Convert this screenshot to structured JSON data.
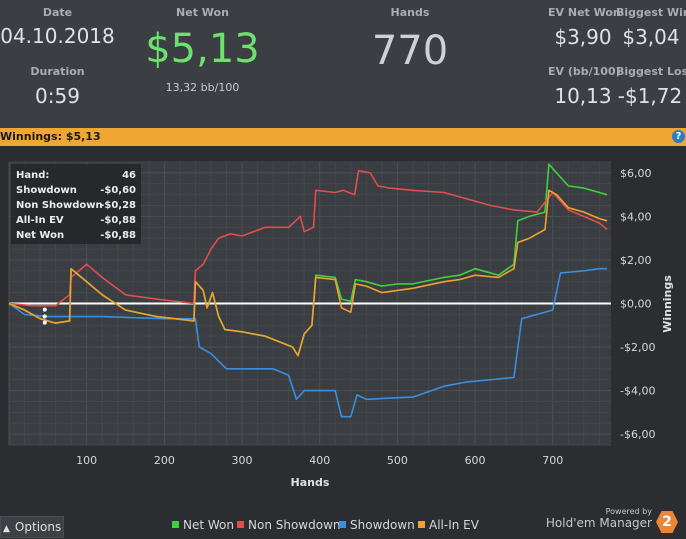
{
  "stats": {
    "date_label": "Date",
    "date_value": "04.10.2018",
    "duration_label": "Duration",
    "duration_value": "0:59",
    "net_won_label": "Net Won",
    "net_won_value": "$5,13",
    "net_won_sub": "13,32 bb/100",
    "hands_label": "Hands",
    "hands_value": "770",
    "ev_net_won_label": "EV Net Won",
    "ev_net_won_value": "$3,90",
    "biggest_win_label": "Biggest Win",
    "biggest_win_value": "$3,04",
    "ev_bb_label": "EV (bb/100)",
    "ev_bb_value": "10,13",
    "biggest_loss_label": "Biggest Loss",
    "biggest_loss_value": "-$1,72"
  },
  "bar": {
    "text": "Winnings: $5,13",
    "help": "?"
  },
  "tooltip": {
    "rows": [
      {
        "label": "Hand:",
        "value": "46"
      },
      {
        "label": "Showdown",
        "value": "-$0,60"
      },
      {
        "label": "Non Showdown",
        "value": "-$0,28"
      },
      {
        "label": "All-In EV",
        "value": "-$0,88"
      },
      {
        "label": "Net Won",
        "value": "-$0,88"
      }
    ]
  },
  "chart_data": {
    "type": "line",
    "xlabel": "Hands",
    "ylabel": "Winnings",
    "xlim": [
      0,
      775
    ],
    "ylim": [
      -6.5,
      6.5
    ],
    "x_ticks": [
      "100",
      "200",
      "300",
      "400",
      "500",
      "600",
      "700"
    ],
    "y_ticks": [
      "$6,00",
      "$4,00",
      "$2,00",
      "$0,00",
      "-$2,00",
      "-$4,00",
      "-$6,00"
    ],
    "series": [
      {
        "name": "Net Won",
        "color": "#3ed13e",
        "points": [
          [
            0,
            0
          ],
          [
            20,
            -0.3
          ],
          [
            40,
            -0.7
          ],
          [
            60,
            -0.9
          ],
          [
            78,
            -0.8
          ],
          [
            80,
            1.6
          ],
          [
            100,
            1.0
          ],
          [
            120,
            0.4
          ],
          [
            150,
            -0.3
          ],
          [
            190,
            -0.6
          ],
          [
            238,
            -0.8
          ],
          [
            240,
            1.0
          ],
          [
            250,
            0.6
          ],
          [
            255,
            -0.2
          ],
          [
            262,
            0.5
          ],
          [
            270,
            -0.6
          ],
          [
            278,
            -1.2
          ],
          [
            300,
            -1.3
          ],
          [
            330,
            -1.5
          ],
          [
            365,
            -2.0
          ],
          [
            372,
            -2.4
          ],
          [
            380,
            -1.4
          ],
          [
            390,
            -1.0
          ],
          [
            395,
            1.3
          ],
          [
            420,
            1.2
          ],
          [
            428,
            0.2
          ],
          [
            440,
            0.1
          ],
          [
            446,
            1.1
          ],
          [
            460,
            1.0
          ],
          [
            480,
            0.8
          ],
          [
            500,
            0.9
          ],
          [
            520,
            0.9
          ],
          [
            560,
            1.2
          ],
          [
            580,
            1.3
          ],
          [
            600,
            1.6
          ],
          [
            630,
            1.3
          ],
          [
            650,
            1.8
          ],
          [
            655,
            3.8
          ],
          [
            670,
            4.0
          ],
          [
            690,
            4.2
          ],
          [
            695,
            6.4
          ],
          [
            705,
            6.0
          ],
          [
            720,
            5.4
          ],
          [
            740,
            5.3
          ],
          [
            760,
            5.1
          ],
          [
            770,
            5.0
          ]
        ]
      },
      {
        "name": "Non Showdown",
        "color": "#e04e4e",
        "points": [
          [
            0,
            0
          ],
          [
            30,
            -0.1
          ],
          [
            60,
            -0.1
          ],
          [
            78,
            0.4
          ],
          [
            80,
            1.2
          ],
          [
            100,
            1.8
          ],
          [
            120,
            1.2
          ],
          [
            150,
            0.4
          ],
          [
            190,
            0.2
          ],
          [
            238,
            0.0
          ],
          [
            240,
            1.5
          ],
          [
            250,
            1.8
          ],
          [
            260,
            2.5
          ],
          [
            270,
            3.0
          ],
          [
            285,
            3.2
          ],
          [
            300,
            3.1
          ],
          [
            330,
            3.5
          ],
          [
            360,
            3.5
          ],
          [
            375,
            4.0
          ],
          [
            380,
            3.3
          ],
          [
            392,
            3.5
          ],
          [
            395,
            5.2
          ],
          [
            420,
            5.1
          ],
          [
            430,
            5.2
          ],
          [
            445,
            5.0
          ],
          [
            450,
            6.1
          ],
          [
            465,
            6.0
          ],
          [
            475,
            5.4
          ],
          [
            490,
            5.3
          ],
          [
            520,
            5.2
          ],
          [
            560,
            5.1
          ],
          [
            590,
            4.8
          ],
          [
            620,
            4.5
          ],
          [
            650,
            4.3
          ],
          [
            680,
            4.2
          ],
          [
            700,
            5.1
          ],
          [
            720,
            4.3
          ],
          [
            740,
            4.0
          ],
          [
            760,
            3.7
          ],
          [
            770,
            3.4
          ]
        ]
      },
      {
        "name": "Showdown",
        "color": "#3a8ee0",
        "points": [
          [
            0,
            0
          ],
          [
            20,
            -0.5
          ],
          [
            50,
            -0.6
          ],
          [
            80,
            -0.6
          ],
          [
            120,
            -0.6
          ],
          [
            200,
            -0.7
          ],
          [
            240,
            -0.7
          ],
          [
            245,
            -2.0
          ],
          [
            260,
            -2.3
          ],
          [
            280,
            -3.0
          ],
          [
            340,
            -3.0
          ],
          [
            360,
            -3.3
          ],
          [
            370,
            -4.4
          ],
          [
            380,
            -4.0
          ],
          [
            420,
            -4.0
          ],
          [
            428,
            -5.2
          ],
          [
            440,
            -5.2
          ],
          [
            448,
            -4.2
          ],
          [
            460,
            -4.4
          ],
          [
            520,
            -4.3
          ],
          [
            560,
            -3.8
          ],
          [
            590,
            -3.6
          ],
          [
            650,
            -3.4
          ],
          [
            660,
            -0.7
          ],
          [
            700,
            -0.3
          ],
          [
            710,
            1.4
          ],
          [
            740,
            1.5
          ],
          [
            760,
            1.6
          ],
          [
            770,
            1.6
          ]
        ]
      },
      {
        "name": "All-In EV",
        "color": "#f0a030",
        "points": [
          [
            0,
            0
          ],
          [
            20,
            -0.3
          ],
          [
            40,
            -0.7
          ],
          [
            60,
            -0.9
          ],
          [
            78,
            -0.8
          ],
          [
            80,
            1.6
          ],
          [
            100,
            1.0
          ],
          [
            120,
            0.4
          ],
          [
            150,
            -0.3
          ],
          [
            190,
            -0.6
          ],
          [
            238,
            -0.8
          ],
          [
            240,
            1.0
          ],
          [
            250,
            0.6
          ],
          [
            255,
            -0.2
          ],
          [
            262,
            0.5
          ],
          [
            270,
            -0.6
          ],
          [
            278,
            -1.2
          ],
          [
            300,
            -1.3
          ],
          [
            330,
            -1.5
          ],
          [
            365,
            -2.0
          ],
          [
            372,
            -2.4
          ],
          [
            380,
            -1.4
          ],
          [
            390,
            -1.0
          ],
          [
            395,
            1.2
          ],
          [
            420,
            1.1
          ],
          [
            428,
            -0.2
          ],
          [
            440,
            -0.4
          ],
          [
            446,
            0.9
          ],
          [
            460,
            0.8
          ],
          [
            480,
            0.5
          ],
          [
            500,
            0.6
          ],
          [
            520,
            0.7
          ],
          [
            560,
            1.0
          ],
          [
            580,
            1.1
          ],
          [
            600,
            1.3
          ],
          [
            630,
            1.2
          ],
          [
            650,
            1.6
          ],
          [
            655,
            2.8
          ],
          [
            670,
            3.0
          ],
          [
            690,
            3.4
          ],
          [
            695,
            5.2
          ],
          [
            705,
            5.0
          ],
          [
            720,
            4.4
          ],
          [
            740,
            4.2
          ],
          [
            760,
            3.9
          ],
          [
            770,
            3.8
          ]
        ]
      }
    ]
  },
  "footer": {
    "options_label": "Options",
    "legend": [
      "Net Won",
      "Non Showdown",
      "Showdown",
      "All-In EV"
    ],
    "powered_by": "Powered by",
    "brand": "Hold'em Manager",
    "logo_text": "2"
  }
}
